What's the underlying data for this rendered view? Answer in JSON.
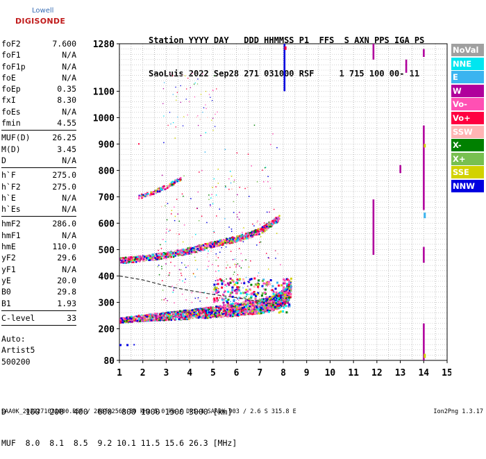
{
  "logo": {
    "line1": "Lowell",
    "line2": "DIGISONDE"
  },
  "header": {
    "line1": "Station YYYY DAY   DDD HHMMSS P1  FFS  S AXN PPS IGA PS",
    "line2": "SaoLuis 2022 Sep28 271 031000 RSF     1 715 100 00- 11"
  },
  "params_group1": [
    {
      "label": "foF2",
      "value": "7.600"
    },
    {
      "label": "foF1",
      "value": "N/A"
    },
    {
      "label": "foF1p",
      "value": "N/A"
    },
    {
      "label": "foE",
      "value": "N/A"
    },
    {
      "label": "foEp",
      "value": "0.35"
    },
    {
      "label": "fxI",
      "value": "8.30"
    },
    {
      "label": "foEs",
      "value": "N/A"
    },
    {
      "label": "fmin",
      "value": "4.55"
    }
  ],
  "params_group2": [
    {
      "label": "MUF(D)",
      "value": "26.25"
    },
    {
      "label": "M(D)",
      "value": "3.45"
    },
    {
      "label": "D",
      "value": "N/A"
    }
  ],
  "params_group3": [
    {
      "label": "h`F",
      "value": "275.0"
    },
    {
      "label": "h`F2",
      "value": "275.0"
    },
    {
      "label": "h`E",
      "value": "N/A"
    },
    {
      "label": "h`Es",
      "value": "N/A"
    }
  ],
  "params_group4": [
    {
      "label": "hmF2",
      "value": "286.0"
    },
    {
      "label": "hmF1",
      "value": "N/A"
    },
    {
      "label": "hmE",
      "value": "110.0"
    },
    {
      "label": "yF2",
      "value": "29.6"
    },
    {
      "label": "yF1",
      "value": "N/A"
    },
    {
      "label": "yE",
      "value": "20.0"
    },
    {
      "label": "B0",
      "value": "29.8"
    },
    {
      "label": "B1",
      "value": "1.93"
    }
  ],
  "params_group5": [
    {
      "label": "C-level",
      "value": "33"
    }
  ],
  "auto": {
    "line1": "Auto:",
    "line2": "Artist5",
    "line3": "500200"
  },
  "dmuf": {
    "d_row": "D    100  200  400  600  800 1000 1500 3000 [km]",
    "muf_row": "MUF  8.0  8.1  8.5  9.2 10.1 11.5 15.6 26.3 [MHz]"
  },
  "footer": {
    "left": "SAA0K_2022271031000.RSF / 280fx256h 50 kHz 5.0 km / DPS-4 SAA0K 903 / 2.6 S 315.8 E",
    "right": "Ion2Png 1.3.17"
  },
  "legend": [
    {
      "label": "NoVal",
      "color": "#a0a0a0"
    },
    {
      "label": "NNE",
      "color": "#00e6f0"
    },
    {
      "label": "E",
      "color": "#3ab4f0"
    },
    {
      "label": "W",
      "color": "#b0009c"
    },
    {
      "label": "Vo-",
      "color": "#ff50b4"
    },
    {
      "label": "Vo+",
      "color": "#ff0040"
    },
    {
      "label": "SSW",
      "color": "#ffb4b4"
    },
    {
      "label": "X-",
      "color": "#008000"
    },
    {
      "label": "X+",
      "color": "#78c050"
    },
    {
      "label": "SSE",
      "color": "#d2d200"
    },
    {
      "label": "NNW",
      "color": "#0000e0"
    }
  ],
  "chart_data": {
    "type": "scatter",
    "x_ticks": [
      1,
      2,
      3,
      4,
      5,
      6,
      7,
      8,
      9,
      10,
      11,
      12,
      13,
      14,
      15
    ],
    "y_ticks": [
      80,
      200,
      300,
      400,
      500,
      600,
      700,
      800,
      900,
      1000,
      1100,
      1280
    ],
    "xlim": [
      1,
      15
    ],
    "ylim": [
      80,
      1280
    ],
    "grid": "on",
    "legend_position": "right",
    "traces": [
      {
        "name": "F2 trace",
        "points": [
          [
            1.0,
            232
          ],
          [
            2.0,
            240
          ],
          [
            3.0,
            246
          ],
          [
            4.0,
            252
          ],
          [
            5.0,
            260
          ],
          [
            6.0,
            268
          ],
          [
            7.0,
            280
          ],
          [
            7.6,
            292
          ],
          [
            8.0,
            312
          ],
          [
            8.3,
            345
          ]
        ]
      },
      {
        "name": "second hop",
        "points": [
          [
            1.0,
            458
          ],
          [
            2.0,
            466
          ],
          [
            3.0,
            478
          ],
          [
            4.0,
            496
          ],
          [
            5.0,
            520
          ],
          [
            6.0,
            540
          ],
          [
            7.0,
            570
          ],
          [
            7.8,
            620
          ]
        ]
      },
      {
        "name": "third hop",
        "points": [
          [
            1.8,
            700
          ],
          [
            2.5,
            720
          ],
          [
            3.0,
            740
          ],
          [
            3.6,
            770
          ]
        ]
      }
    ],
    "vertical_lines": [
      {
        "x": 8.05,
        "y": [
          1100,
          1280
        ],
        "color": "#0000e0"
      },
      {
        "x": 11.85,
        "y": [
          1220,
          1280
        ],
        "color": "#b0009c"
      },
      {
        "x": 11.85,
        "y": [
          480,
          690
        ],
        "color": "#b0009c"
      },
      {
        "x": 13.25,
        "y": [
          1170,
          1220
        ],
        "color": "#b0009c"
      },
      {
        "x": 13.0,
        "y": [
          790,
          820
        ],
        "color": "#b0009c"
      },
      {
        "x": 14.0,
        "y": [
          650,
          970
        ],
        "color": "#b0009c"
      },
      {
        "x": 14.0,
        "y": [
          1230,
          1260
        ],
        "color": "#b0009c"
      },
      {
        "x": 14.0,
        "y": [
          80,
          220
        ],
        "color": "#b0009c"
      },
      {
        "x": 14.0,
        "y": [
          450,
          510
        ],
        "color": "#b0009c"
      }
    ],
    "profile_curve": [
      [
        1.0,
        400
      ],
      [
        2.0,
        385
      ],
      [
        3.0,
        362
      ],
      [
        4.0,
        345
      ],
      [
        5.0,
        330
      ],
      [
        6.0,
        318
      ],
      [
        7.0,
        303
      ],
      [
        7.6,
        292
      ]
    ]
  }
}
